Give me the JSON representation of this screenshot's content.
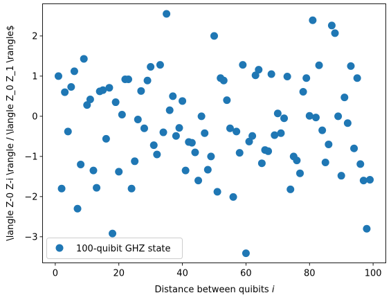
{
  "chart_data": {
    "type": "scatter",
    "xlabel": "Distance between quibits i",
    "ylabel": "\\langle Z-0 Z-i \\rangle / \\langle Z_0 Z_1 \\rangle$",
    "xlim": [
      -4,
      104
    ],
    "ylim": [
      -3.65,
      2.8
    ],
    "xticks": [
      0,
      20,
      40,
      60,
      80,
      100
    ],
    "yticks": [
      -3,
      -2,
      -1,
      0,
      1,
      2
    ],
    "grid": false,
    "legend_position": "lower-left",
    "color": "#1f77b4",
    "series": [
      {
        "name": "100-quibit GHZ state",
        "x": [
          1,
          2,
          3,
          4,
          5,
          6,
          7,
          8,
          9,
          10,
          11,
          12,
          13,
          14,
          15,
          16,
          17,
          18,
          19,
          20,
          21,
          22,
          23,
          24,
          25,
          26,
          27,
          28,
          29,
          30,
          31,
          32,
          33,
          34,
          35,
          36,
          37,
          38,
          39,
          40,
          41,
          42,
          43,
          44,
          45,
          46,
          47,
          48,
          49,
          50,
          51,
          52,
          53,
          54,
          55,
          56,
          57,
          58,
          59,
          60,
          61,
          62,
          63,
          64,
          65,
          66,
          67,
          68,
          69,
          70,
          71,
          72,
          73,
          74,
          75,
          76,
          77,
          78,
          79,
          80,
          81,
          82,
          83,
          84,
          85,
          86,
          87,
          88,
          89,
          90,
          91,
          92,
          93,
          94,
          95,
          96,
          97,
          98,
          99
        ],
        "y": [
          1.0,
          -1.8,
          0.6,
          -0.38,
          0.73,
          1.12,
          -2.3,
          -1.2,
          1.43,
          0.28,
          0.42,
          -1.35,
          -1.78,
          0.62,
          0.65,
          -0.56,
          0.71,
          -2.92,
          0.35,
          -1.38,
          0.04,
          0.92,
          0.92,
          -1.8,
          -1.12,
          -0.08,
          0.63,
          -0.3,
          0.89,
          1.23,
          -0.72,
          -0.95,
          1.28,
          -0.4,
          2.55,
          0.15,
          0.5,
          -0.49,
          -0.29,
          0.38,
          -1.35,
          -0.64,
          -0.66,
          -0.9,
          -1.6,
          0.0,
          -0.42,
          -1.33,
          -1.0,
          2.0,
          -1.88,
          0.95,
          0.89,
          0.4,
          -0.3,
          -2.01,
          -0.38,
          -0.91,
          1.28,
          -3.41,
          -0.63,
          -0.49,
          1.02,
          1.16,
          -1.17,
          -0.84,
          -0.87,
          1.05,
          -0.47,
          0.07,
          -0.42,
          -0.05,
          0.99,
          -1.82,
          -1.0,
          -1.1,
          -1.42,
          0.61,
          0.95,
          0.01,
          2.39,
          -0.03,
          1.27,
          -0.35,
          -1.15,
          -0.7,
          2.26,
          2.07,
          0.0,
          -1.48,
          0.47,
          -0.17,
          1.25,
          -0.8,
          0.95,
          -1.19,
          -1.6,
          -2.8,
          -1.58
        ]
      }
    ]
  }
}
